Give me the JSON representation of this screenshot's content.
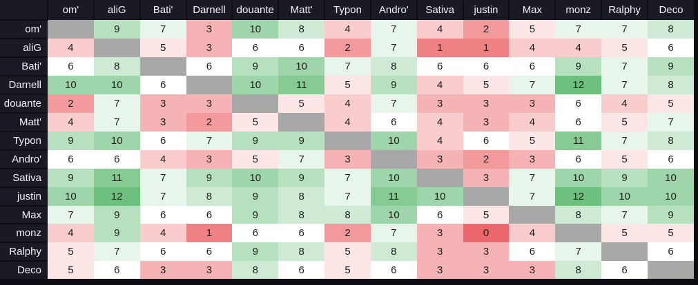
{
  "chart_data": {
    "type": "heatmap",
    "title": "",
    "corner_label": "",
    "x_labels": [
      "om'",
      "aliG",
      "Bati'",
      "Darnell",
      "douante",
      "Matt'",
      "Typon",
      "Andro'",
      "Sativa",
      "justin",
      "Max",
      "monz",
      "Ralphy",
      "Deco"
    ],
    "y_labels": [
      "om'",
      "aliG",
      "Bati'",
      "Darnell",
      "douante",
      "Matt'",
      "Typon",
      "Andro'",
      "Sativa",
      "justin",
      "Max",
      "monz",
      "Ralphy",
      "Deco"
    ],
    "matrix": [
      [
        null,
        9,
        7,
        3,
        10,
        8,
        4,
        7,
        4,
        2,
        5,
        7,
        7,
        8
      ],
      [
        4,
        null,
        5,
        3,
        6,
        6,
        2,
        7,
        1,
        1,
        4,
        4,
        5,
        6
      ],
      [
        6,
        8,
        null,
        6,
        9,
        10,
        7,
        8,
        6,
        6,
        6,
        9,
        7,
        9
      ],
      [
        10,
        10,
        6,
        null,
        10,
        11,
        5,
        9,
        4,
        5,
        7,
        12,
        7,
        8
      ],
      [
        2,
        7,
        3,
        3,
        null,
        5,
        4,
        7,
        3,
        3,
        3,
        6,
        4,
        5
      ],
      [
        4,
        7,
        3,
        2,
        5,
        null,
        4,
        6,
        4,
        3,
        4,
        6,
        5,
        7
      ],
      [
        9,
        10,
        6,
        7,
        9,
        9,
        null,
        10,
        4,
        6,
        5,
        11,
        7,
        8
      ],
      [
        6,
        6,
        4,
        3,
        5,
        7,
        3,
        null,
        3,
        2,
        3,
        6,
        5,
        6
      ],
      [
        9,
        11,
        7,
        9,
        10,
        9,
        7,
        10,
        null,
        3,
        7,
        10,
        9,
        10
      ],
      [
        10,
        12,
        7,
        8,
        9,
        8,
        7,
        11,
        10,
        null,
        7,
        12,
        10,
        10
      ],
      [
        7,
        9,
        6,
        6,
        9,
        8,
        8,
        10,
        6,
        5,
        null,
        8,
        7,
        9
      ],
      [
        4,
        9,
        4,
        1,
        6,
        6,
        2,
        7,
        3,
        0,
        4,
        null,
        5,
        5
      ],
      [
        5,
        7,
        6,
        6,
        9,
        8,
        5,
        8,
        3,
        3,
        6,
        7,
        null,
        6
      ],
      [
        5,
        6,
        3,
        3,
        8,
        6,
        5,
        6,
        3,
        3,
        3,
        8,
        6,
        null
      ]
    ],
    "value_range": [
      0,
      12
    ],
    "midpoint": 6,
    "colors": {
      "low": "#ec676b",
      "mid": "#ffffff",
      "high": "#6ec07f",
      "diagonal": "#a8a8a8",
      "header_bg": "#1a1a24",
      "header_text": "#f2f2f4",
      "cell_text": "#1d1d1d",
      "page_bg": "#0d0d13"
    },
    "layout": {
      "grid": "off",
      "legend": "none",
      "diagonal_meaning": "self-cell (gray, no value)"
    }
  }
}
